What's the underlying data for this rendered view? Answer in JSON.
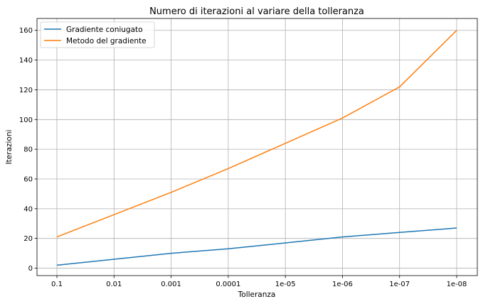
{
  "chart_data": {
    "type": "line",
    "title": "Numero di iterazioni al variare della tolleranza",
    "xlabel": "Tolleranza",
    "ylabel": "Iterazioni",
    "categories": [
      "0.1",
      "0.01",
      "0.001",
      "0.0001",
      "1e-05",
      "1e-06",
      "1e-07",
      "1e-08"
    ],
    "ylim": [
      -5,
      168
    ],
    "yticks": [
      0,
      20,
      40,
      60,
      80,
      100,
      120,
      140,
      160
    ],
    "grid": true,
    "legend_position": "top-left",
    "series": [
      {
        "name": "Gradiente coniugato",
        "color": "#1f77b4",
        "values": [
          2,
          6,
          10,
          13,
          17,
          21,
          24,
          27
        ]
      },
      {
        "name": "Metodo del gradiente",
        "color": "#ff7f0e",
        "values": [
          21,
          36,
          51,
          67,
          84,
          101,
          122,
          160
        ]
      }
    ]
  }
}
